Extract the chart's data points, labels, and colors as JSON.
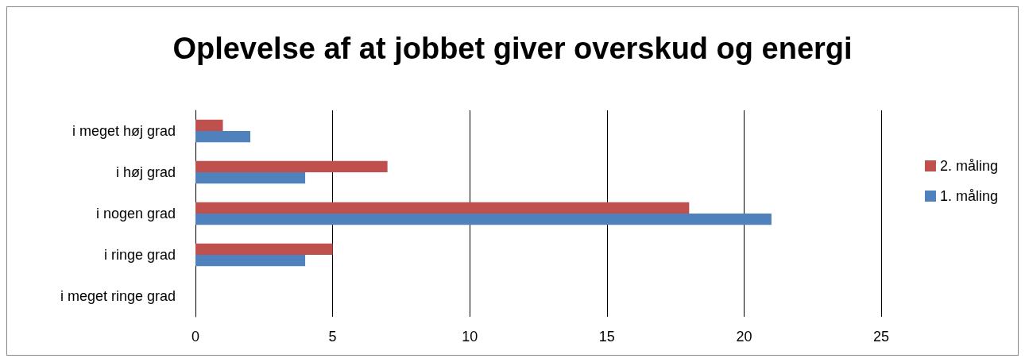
{
  "chart_data": {
    "type": "bar",
    "orientation": "horizontal",
    "title": "Oplevelse af at jobbet giver overskud og energi",
    "categories": [
      "i meget høj grad",
      "i høj grad",
      "i nogen grad",
      "i ringe grad",
      "i meget ringe grad"
    ],
    "series": [
      {
        "name": "2. måling",
        "color": "#c0504d",
        "values": [
          1,
          7,
          18,
          5,
          0
        ]
      },
      {
        "name": "1. måling",
        "color": "#4f81bd",
        "values": [
          2,
          4,
          21,
          4,
          0
        ]
      }
    ],
    "xlim": [
      0,
      25
    ],
    "xticks": [
      0,
      5,
      10,
      15,
      20,
      25
    ],
    "grid": "x",
    "legend": "right"
  }
}
